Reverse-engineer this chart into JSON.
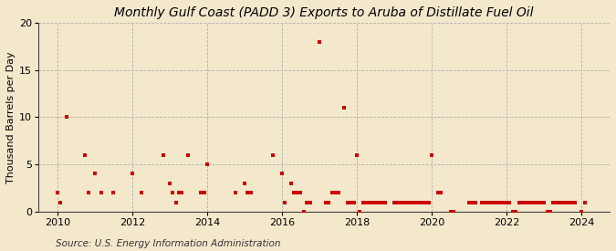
{
  "title": "Monthly Gulf Coast (PADD 3) Exports to Aruba of Distillate Fuel Oil",
  "ylabel": "Thousand Barrels per Day",
  "source": "Source: U.S. Energy Information Administration",
  "background_color": "#f3e8cc",
  "plot_bg_color": "#f3e8cc",
  "marker_color": "#cc0000",
  "marker_size": 3.5,
  "ylim": [
    0,
    20
  ],
  "yticks": [
    0,
    5,
    10,
    15,
    20
  ],
  "data_points": [
    [
      2010.0,
      2.0
    ],
    [
      2010.08,
      1.0
    ],
    [
      2010.25,
      10.0
    ],
    [
      2010.75,
      6.0
    ],
    [
      2010.83,
      2.0
    ],
    [
      2011.0,
      4.0
    ],
    [
      2011.17,
      2.0
    ],
    [
      2011.5,
      2.0
    ],
    [
      2012.0,
      4.0
    ],
    [
      2012.25,
      2.0
    ],
    [
      2012.83,
      6.0
    ],
    [
      2013.0,
      3.0
    ],
    [
      2013.08,
      2.0
    ],
    [
      2013.17,
      1.0
    ],
    [
      2013.25,
      2.0
    ],
    [
      2013.33,
      2.0
    ],
    [
      2013.5,
      6.0
    ],
    [
      2013.83,
      2.0
    ],
    [
      2013.92,
      2.0
    ],
    [
      2014.0,
      5.0
    ],
    [
      2014.75,
      2.0
    ],
    [
      2015.0,
      3.0
    ],
    [
      2015.08,
      2.0
    ],
    [
      2015.17,
      2.0
    ],
    [
      2015.75,
      6.0
    ],
    [
      2016.0,
      4.0
    ],
    [
      2016.08,
      1.0
    ],
    [
      2016.25,
      3.0
    ],
    [
      2016.33,
      2.0
    ],
    [
      2016.42,
      2.0
    ],
    [
      2016.5,
      2.0
    ],
    [
      2016.58,
      0.0
    ],
    [
      2016.67,
      1.0
    ],
    [
      2016.75,
      1.0
    ],
    [
      2017.0,
      18.0
    ],
    [
      2017.17,
      1.0
    ],
    [
      2017.25,
      1.0
    ],
    [
      2017.33,
      2.0
    ],
    [
      2017.42,
      2.0
    ],
    [
      2017.5,
      2.0
    ],
    [
      2017.67,
      11.0
    ],
    [
      2017.75,
      1.0
    ],
    [
      2017.83,
      1.0
    ],
    [
      2017.92,
      1.0
    ],
    [
      2018.0,
      6.0
    ],
    [
      2018.08,
      0.0
    ],
    [
      2018.17,
      1.0
    ],
    [
      2018.25,
      1.0
    ],
    [
      2018.33,
      1.0
    ],
    [
      2018.42,
      1.0
    ],
    [
      2018.5,
      1.0
    ],
    [
      2018.58,
      1.0
    ],
    [
      2018.67,
      1.0
    ],
    [
      2018.75,
      1.0
    ],
    [
      2019.0,
      1.0
    ],
    [
      2019.08,
      1.0
    ],
    [
      2019.17,
      1.0
    ],
    [
      2019.25,
      1.0
    ],
    [
      2019.33,
      1.0
    ],
    [
      2019.42,
      1.0
    ],
    [
      2019.5,
      1.0
    ],
    [
      2019.58,
      1.0
    ],
    [
      2019.67,
      1.0
    ],
    [
      2019.75,
      1.0
    ],
    [
      2019.83,
      1.0
    ],
    [
      2019.92,
      1.0
    ],
    [
      2020.0,
      6.0
    ],
    [
      2020.17,
      2.0
    ],
    [
      2020.25,
      2.0
    ],
    [
      2020.5,
      0.0
    ],
    [
      2020.58,
      0.0
    ],
    [
      2021.0,
      1.0
    ],
    [
      2021.08,
      1.0
    ],
    [
      2021.17,
      1.0
    ],
    [
      2021.33,
      1.0
    ],
    [
      2021.42,
      1.0
    ],
    [
      2021.5,
      1.0
    ],
    [
      2021.58,
      1.0
    ],
    [
      2021.67,
      1.0
    ],
    [
      2021.75,
      1.0
    ],
    [
      2021.83,
      1.0
    ],
    [
      2021.92,
      1.0
    ],
    [
      2022.0,
      1.0
    ],
    [
      2022.08,
      1.0
    ],
    [
      2022.17,
      0.0
    ],
    [
      2022.25,
      0.0
    ],
    [
      2022.33,
      1.0
    ],
    [
      2022.42,
      1.0
    ],
    [
      2022.5,
      1.0
    ],
    [
      2022.58,
      1.0
    ],
    [
      2022.67,
      1.0
    ],
    [
      2022.75,
      1.0
    ],
    [
      2022.83,
      1.0
    ],
    [
      2022.92,
      1.0
    ],
    [
      2023.0,
      1.0
    ],
    [
      2023.08,
      0.0
    ],
    [
      2023.17,
      0.0
    ],
    [
      2023.25,
      1.0
    ],
    [
      2023.33,
      1.0
    ],
    [
      2023.42,
      1.0
    ],
    [
      2023.5,
      1.0
    ],
    [
      2023.58,
      1.0
    ],
    [
      2023.67,
      1.0
    ],
    [
      2023.75,
      1.0
    ],
    [
      2023.83,
      1.0
    ],
    [
      2024.0,
      0.0
    ],
    [
      2024.08,
      1.0
    ]
  ],
  "xlim": [
    2009.5,
    2024.75
  ],
  "xticks": [
    2010,
    2012,
    2014,
    2016,
    2018,
    2020,
    2022,
    2024
  ],
  "title_fontsize": 10,
  "label_fontsize": 8,
  "tick_fontsize": 8,
  "source_fontsize": 7.5
}
